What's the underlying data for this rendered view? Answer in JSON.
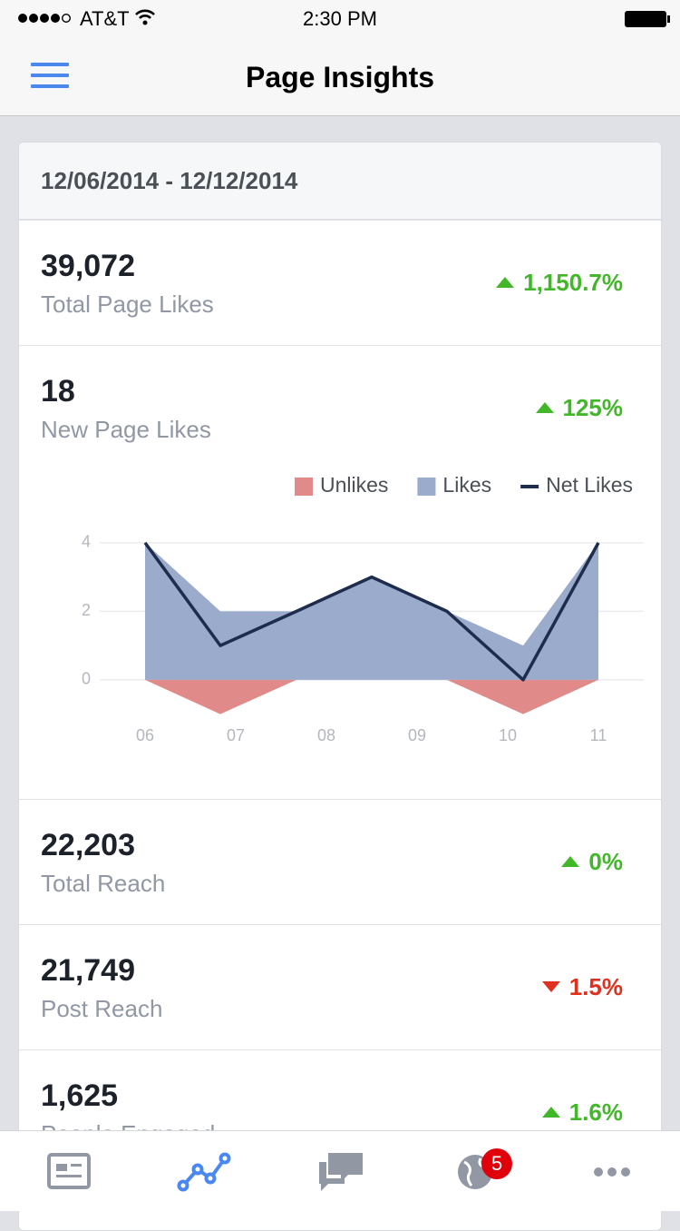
{
  "status_bar": {
    "carrier": "AT&T",
    "time": "2:30 PM"
  },
  "header": {
    "title": "Page Insights"
  },
  "date_range": "12/06/2014 - 12/12/2014",
  "metrics": [
    {
      "value": "39,072",
      "label": "Total Page Likes",
      "change": "1,150.7%",
      "trend": "up"
    },
    {
      "value": "18",
      "label": "New Page Likes",
      "change": "125%",
      "trend": "up"
    },
    {
      "value": "22,203",
      "label": "Total Reach",
      "change": "0%",
      "trend": "up"
    },
    {
      "value": "21,749",
      "label": "Post Reach",
      "change": "1.5%",
      "trend": "down"
    },
    {
      "value": "1,625",
      "label": "People Engaged",
      "change": "1.6%",
      "trend": "up"
    }
  ],
  "chart_data": {
    "type": "area",
    "legend": "top-right",
    "grid": true,
    "x": [
      0,
      0.83,
      1.67,
      2.5,
      3.33,
      4.17,
      5
    ],
    "xlim": [
      0,
      5
    ],
    "xticks": [
      {
        "value": 0,
        "label": "06"
      },
      {
        "value": 1,
        "label": "07"
      },
      {
        "value": 2,
        "label": "08"
      },
      {
        "value": 3,
        "label": "09"
      },
      {
        "value": 4,
        "label": "10"
      },
      {
        "value": 5,
        "label": "11"
      }
    ],
    "ylim": [
      -1.5,
      4.5
    ],
    "yticks": [
      0,
      2,
      4
    ],
    "series": [
      {
        "name": "Unlikes",
        "type": "area",
        "color": "#e08a8a",
        "values": [
          0,
          -1,
          0,
          0,
          0,
          -1,
          0
        ]
      },
      {
        "name": "Likes",
        "type": "area",
        "color": "#9aabcc",
        "values": [
          4,
          2,
          2,
          3,
          2,
          1,
          4
        ]
      },
      {
        "name": "Net Likes",
        "type": "line",
        "color": "#1f2d4d",
        "values": [
          4,
          1,
          2,
          3,
          2,
          0,
          4
        ]
      }
    ]
  },
  "tab_bar": {
    "badge": "5"
  }
}
